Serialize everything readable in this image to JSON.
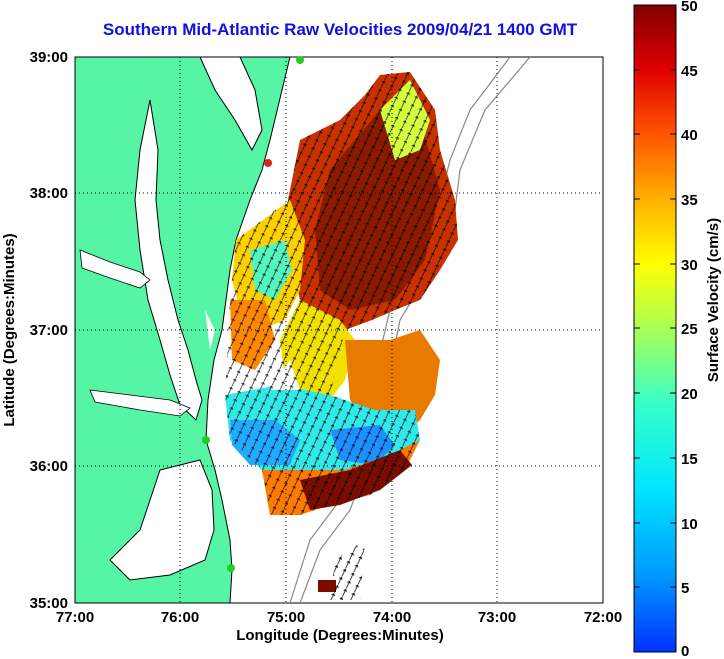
{
  "title": "Southern Mid-Atlantic Raw Velocities 2009/04/21 1400 GMT",
  "map": {
    "xlabel": "Longitude (Degrees:Minutes)",
    "ylabel": "Latitude (Degrees:Minutes)",
    "x_ticks": [
      "77:00",
      "76:00",
      "75:00",
      "74:00",
      "73:00",
      "72:00"
    ],
    "y_ticks": [
      "39:00",
      "38:00",
      "37:00",
      "36:00",
      "35:00"
    ],
    "lon_range": [
      -77,
      -72
    ],
    "lat_range": [
      35,
      39
    ],
    "land_color": "#55f5a5",
    "coast_color": "#000000",
    "bathymetry_color": "#888888",
    "grid": "dotted"
  },
  "colorbar": {
    "label": "Surface Velocity (cm/s)",
    "ticks": [
      "0",
      "5",
      "10",
      "15",
      "20",
      "25",
      "30",
      "35",
      "40",
      "45",
      "50"
    ],
    "range": [
      0,
      50
    ],
    "colormap": "jet"
  },
  "stations": [
    {
      "name": "north-station",
      "color": "#22cc22"
    },
    {
      "name": "delmarva-station",
      "color": "#dd2222"
    },
    {
      "name": "cape-henry-station",
      "color": "#22cc22"
    },
    {
      "name": "hatteras-station",
      "color": "#22cc22"
    }
  ]
}
